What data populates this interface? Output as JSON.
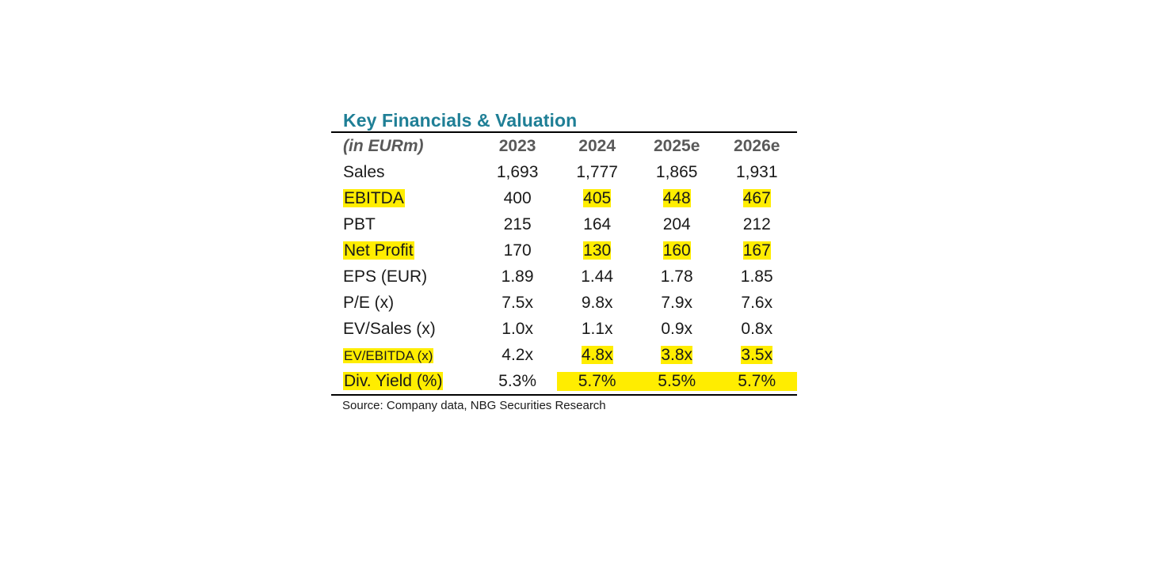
{
  "title": "Key Financials & Valuation",
  "header": {
    "unit": "(in EURm)",
    "years": [
      "2023",
      "2024",
      "2025e",
      "2026e"
    ]
  },
  "rows": [
    {
      "label": "Sales",
      "values": [
        "1,693",
        "1,777",
        "1,865",
        "1,931"
      ]
    },
    {
      "label": "EBITDA",
      "values": [
        "400",
        "405",
        "448",
        "467"
      ]
    },
    {
      "label": "PBT",
      "values": [
        "215",
        "164",
        "204",
        "212"
      ]
    },
    {
      "label": "Net Profit",
      "values": [
        "170",
        "130",
        "160",
        "167"
      ]
    },
    {
      "label": "EPS (EUR)",
      "values": [
        "1.89",
        "1.44",
        "1.78",
        "1.85"
      ]
    },
    {
      "label": "P/E (x)",
      "values": [
        "7.5x",
        "9.8x",
        "7.9x",
        "7.6x"
      ]
    },
    {
      "label": "EV/Sales (x)",
      "values": [
        "1.0x",
        "1.1x",
        "0.9x",
        "0.8x"
      ]
    },
    {
      "label": "EV/EBITDA (x)",
      "values": [
        "4.2x",
        "4.8x",
        "3.8x",
        "3.5x"
      ]
    },
    {
      "label": "Div. Yield (%)",
      "values": [
        "5.3%",
        "5.7%",
        "5.5%",
        "5.7%"
      ]
    }
  ],
  "source": "Source: Company data, NBG Securities Research",
  "colors": {
    "title": "#1f7f96",
    "highlight": "#ffed00",
    "header_text": "#595959"
  }
}
